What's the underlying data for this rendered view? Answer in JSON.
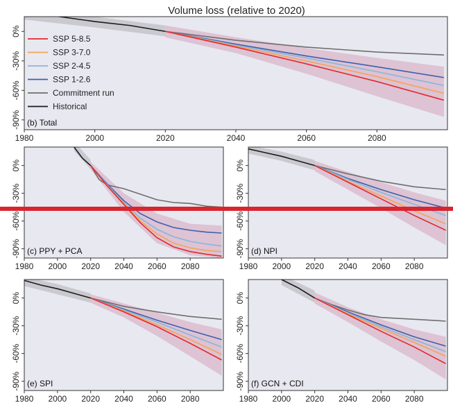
{
  "title": "Volume loss (relative to 2020)",
  "colors": {
    "panel_bg": "#e8e8f0",
    "ssp585": "#e3282b",
    "ssp370": "#f6a25a",
    "ssp245": "#86b6dc",
    "ssp126": "#3d5fad",
    "commitment": "#6e6e6e",
    "historical": "#1a1a1a",
    "band_ssp585": "#f2b3b8",
    "band_ssp126": "#b7b9e3",
    "band_hist": "#bfbfc4",
    "overlay_bar": "#d8252e"
  },
  "legend": [
    {
      "key": "ssp585",
      "label": "SSP 5-8.5"
    },
    {
      "key": "ssp370",
      "label": "SSP 3-7.0"
    },
    {
      "key": "ssp245",
      "label": "SSP 2-4.5"
    },
    {
      "key": "ssp126",
      "label": "SSP 1-2.6"
    },
    {
      "key": "commitment",
      "label": "Commitment run"
    },
    {
      "key": "historical",
      "label": "Historical"
    }
  ],
  "chart_data": [
    {
      "type": "line",
      "panel_label": "(b) Total",
      "xlim": [
        1980,
        2100
      ],
      "ylim": [
        -100,
        15
      ],
      "xticks": [
        1980,
        2000,
        2020,
        2040,
        2060,
        2080
      ],
      "yticks": [
        0,
        -30,
        -60,
        -90
      ],
      "ytick_labels": [
        "0%",
        "-30%",
        "-60%",
        "-90%"
      ],
      "historical": {
        "x": [
          1980,
          1990,
          2000,
          2010,
          2020
        ],
        "y": [
          19,
          15,
          10,
          6,
          0
        ]
      },
      "series": [
        {
          "key": "ssp585",
          "x": [
            2020,
            2040,
            2060,
            2080,
            2099
          ],
          "y": [
            0,
            -16,
            -33,
            -51,
            -70
          ]
        },
        {
          "key": "ssp370",
          "x": [
            2020,
            2040,
            2060,
            2080,
            2099
          ],
          "y": [
            0,
            -15,
            -30,
            -46,
            -63
          ]
        },
        {
          "key": "ssp245",
          "x": [
            2020,
            2040,
            2060,
            2080,
            2099
          ],
          "y": [
            0,
            -14,
            -27,
            -41,
            -55
          ]
        },
        {
          "key": "ssp126",
          "x": [
            2020,
            2040,
            2060,
            2080,
            2099
          ],
          "y": [
            0,
            -13,
            -25,
            -36,
            -47
          ]
        },
        {
          "key": "commitment",
          "x": [
            2020,
            2040,
            2060,
            2080,
            2099
          ],
          "y": [
            0,
            -9,
            -16,
            -21,
            -24
          ]
        }
      ],
      "band_hist": {
        "x": [
          1980,
          2000,
          2020
        ],
        "upper": [
          24,
          15,
          6
        ],
        "lower": [
          12,
          4,
          -5
        ]
      },
      "band_upper": {
        "x": [
          2020,
          2040,
          2060,
          2080,
          2099
        ],
        "upper": [
          6,
          -6,
          -17,
          -27,
          -36
        ],
        "lower": [
          -6,
          -22,
          -43,
          -66,
          -87
        ]
      }
    },
    {
      "type": "line",
      "panel_label": "(c) PPY + PCA",
      "xlim": [
        1980,
        2100
      ],
      "ylim": [
        -100,
        20
      ],
      "xticks": [
        1980,
        2000,
        2020,
        2040,
        2060,
        2080
      ],
      "yticks": [
        0,
        -30,
        -60,
        -90
      ],
      "ytick_labels": [
        "0%",
        "-30%",
        "-60%",
        "-90%"
      ],
      "historical": {
        "x": [
          2010,
          2015,
          2020
        ],
        "y": [
          20,
          8,
          0
        ]
      },
      "series": [
        {
          "key": "ssp585",
          "x": [
            2020,
            2030,
            2040,
            2050,
            2060,
            2070,
            2080,
            2090,
            2099
          ],
          "y": [
            0,
            -22,
            -42,
            -62,
            -78,
            -88,
            -93,
            -96,
            -98
          ]
        },
        {
          "key": "ssp370",
          "x": [
            2020,
            2030,
            2040,
            2050,
            2060,
            2070,
            2080,
            2090,
            2099
          ],
          "y": [
            0,
            -22,
            -41,
            -60,
            -74,
            -84,
            -89,
            -92,
            -93
          ]
        },
        {
          "key": "ssp245",
          "x": [
            2020,
            2030,
            2040,
            2050,
            2060,
            2070,
            2080,
            2090,
            2099
          ],
          "y": [
            0,
            -21,
            -40,
            -57,
            -69,
            -77,
            -82,
            -85,
            -87
          ]
        },
        {
          "key": "ssp126",
          "x": [
            2020,
            2030,
            2040,
            2050,
            2060,
            2070,
            2080,
            2090,
            2099
          ],
          "y": [
            0,
            -20,
            -38,
            -52,
            -61,
            -67,
            -70,
            -72,
            -73
          ]
        },
        {
          "key": "commitment",
          "x": [
            2020,
            2025,
            2030,
            2040,
            2050,
            2060,
            2070,
            2080,
            2090,
            2099
          ],
          "y": [
            0,
            -15,
            -21,
            -25,
            -31,
            -37,
            -40,
            -41,
            -44,
            -45
          ]
        }
      ],
      "band_hist": {
        "x": [
          2010,
          2020
        ],
        "upper": [
          26,
          6
        ],
        "lower": [
          16,
          -4
        ]
      },
      "band_upper": {
        "x": [
          2020,
          2040,
          2060,
          2080,
          2099
        ],
        "upper": [
          4,
          -30,
          -52,
          -63,
          -65
        ],
        "lower": [
          -4,
          -50,
          -84,
          -97,
          -100
        ]
      }
    },
    {
      "type": "line",
      "panel_label": "(d) NPI",
      "xlim": [
        1980,
        2100
      ],
      "ylim": [
        -100,
        20
      ],
      "xticks": [
        1980,
        2000,
        2020,
        2040,
        2060,
        2080
      ],
      "yticks": [
        0,
        -30,
        -60,
        -90
      ],
      "ytick_labels": [
        "0%",
        "-30%",
        "-60%",
        "-90%"
      ],
      "historical": {
        "x": [
          1980,
          1990,
          2000,
          2010,
          2020
        ],
        "y": [
          18,
          14,
          10,
          5,
          0
        ]
      },
      "series": [
        {
          "key": "ssp585",
          "x": [
            2020,
            2040,
            2060,
            2080,
            2099
          ],
          "y": [
            0,
            -18,
            -36,
            -54,
            -70
          ]
        },
        {
          "key": "ssp370",
          "x": [
            2020,
            2040,
            2060,
            2080,
            2099
          ],
          "y": [
            0,
            -17,
            -33,
            -49,
            -63
          ]
        },
        {
          "key": "ssp245",
          "x": [
            2020,
            2040,
            2060,
            2080,
            2099
          ],
          "y": [
            0,
            -15,
            -29,
            -42,
            -54
          ]
        },
        {
          "key": "ssp126",
          "x": [
            2020,
            2040,
            2060,
            2080,
            2099
          ],
          "y": [
            0,
            -14,
            -26,
            -37,
            -46
          ]
        },
        {
          "key": "commitment",
          "x": [
            2020,
            2040,
            2060,
            2080,
            2099
          ],
          "y": [
            0,
            -9,
            -17,
            -23,
            -26
          ]
        }
      ],
      "band_hist": {
        "x": [
          1980,
          2000,
          2020
        ],
        "upper": [
          22,
          15,
          6
        ],
        "lower": [
          13,
          5,
          -5
        ]
      },
      "band_upper": {
        "x": [
          2020,
          2040,
          2060,
          2080,
          2099
        ],
        "upper": [
          5,
          -7,
          -18,
          -29,
          -38
        ],
        "lower": [
          -6,
          -26,
          -46,
          -67,
          -86
        ]
      }
    },
    {
      "type": "line",
      "panel_label": "(e) SPI",
      "xlim": [
        1980,
        2100
      ],
      "ylim": [
        -100,
        20
      ],
      "xticks": [
        1980,
        2000,
        2020,
        2040,
        2060,
        2080
      ],
      "yticks": [
        0,
        -30,
        -60,
        -90
      ],
      "ytick_labels": [
        "0%",
        "-30%",
        "-60%",
        "-90%"
      ],
      "historical": {
        "x": [
          1980,
          1990,
          2000,
          2010,
          2020
        ],
        "y": [
          19,
          14,
          10,
          5,
          0
        ]
      },
      "series": [
        {
          "key": "ssp585",
          "x": [
            2020,
            2040,
            2060,
            2080,
            2099
          ],
          "y": [
            0,
            -15,
            -31,
            -49,
            -67
          ]
        },
        {
          "key": "ssp370",
          "x": [
            2020,
            2040,
            2060,
            2080,
            2099
          ],
          "y": [
            0,
            -14,
            -29,
            -45,
            -61
          ]
        },
        {
          "key": "ssp245",
          "x": [
            2020,
            2040,
            2060,
            2080,
            2099
          ],
          "y": [
            0,
            -13,
            -26,
            -40,
            -53
          ]
        },
        {
          "key": "ssp126",
          "x": [
            2020,
            2040,
            2060,
            2080,
            2099
          ],
          "y": [
            0,
            -12,
            -24,
            -35,
            -45
          ]
        },
        {
          "key": "commitment",
          "x": [
            2020,
            2040,
            2060,
            2080,
            2099
          ],
          "y": [
            0,
            -9,
            -15,
            -20,
            -23
          ]
        }
      ],
      "band_hist": {
        "x": [
          1980,
          2000,
          2020
        ],
        "upper": [
          23,
          15,
          5
        ],
        "lower": [
          13,
          4,
          -5
        ]
      },
      "band_upper": {
        "x": [
          2020,
          2040,
          2060,
          2080,
          2099
        ],
        "upper": [
          4,
          -6,
          -16,
          -26,
          -34
        ],
        "lower": [
          -5,
          -21,
          -41,
          -63,
          -84
        ]
      }
    },
    {
      "type": "line",
      "panel_label": "(f) GCN + CDI",
      "xlim": [
        1980,
        2100
      ],
      "ylim": [
        -100,
        20
      ],
      "xticks": [
        1980,
        2000,
        2020,
        2040,
        2060,
        2080
      ],
      "yticks": [
        0,
        -30,
        -60,
        -90
      ],
      "ytick_labels": [
        "0%",
        "-30%",
        "-60%",
        "-90%"
      ],
      "historical": {
        "x": [
          2000,
          2010,
          2020
        ],
        "y": [
          20,
          11,
          0
        ]
      },
      "series": [
        {
          "key": "ssp585",
          "x": [
            2020,
            2040,
            2060,
            2080,
            2099
          ],
          "y": [
            0,
            -18,
            -36,
            -53,
            -71
          ]
        },
        {
          "key": "ssp370",
          "x": [
            2020,
            2040,
            2060,
            2080,
            2099
          ],
          "y": [
            0,
            -17,
            -33,
            -48,
            -63
          ]
        },
        {
          "key": "ssp245",
          "x": [
            2020,
            2040,
            2060,
            2080,
            2099
          ],
          "y": [
            0,
            -16,
            -31,
            -45,
            -58
          ]
        },
        {
          "key": "ssp126",
          "x": [
            2020,
            2040,
            2060,
            2080,
            2099
          ],
          "y": [
            0,
            -15,
            -29,
            -42,
            -52
          ]
        },
        {
          "key": "commitment",
          "x": [
            2020,
            2030,
            2040,
            2050,
            2060,
            2080,
            2099
          ],
          "y": [
            0,
            -7,
            -13,
            -18,
            -21,
            -23,
            -25
          ]
        }
      ],
      "band_hist": {
        "x": [
          2000,
          2020
        ],
        "upper": [
          25,
          8
        ],
        "lower": [
          14,
          -5
        ]
      },
      "band_upper": {
        "x": [
          2020,
          2040,
          2060,
          2080,
          2099
        ],
        "upper": [
          6,
          -10,
          -23,
          -34,
          -42
        ],
        "lower": [
          -6,
          -26,
          -47,
          -67,
          -88
        ]
      }
    }
  ]
}
